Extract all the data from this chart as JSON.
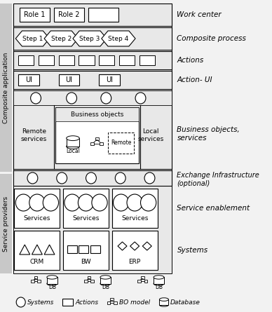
{
  "bg_color": "#f2f2f2",
  "white": "#ffffff",
  "black": "#000000",
  "lgray": "#e0e0e0",
  "mgray": "#c8c8c8",
  "composite_label": "Composite application",
  "service_label": "Service providers",
  "work_center_label": "Work center",
  "composite_process_label": "Composite process",
  "actions_label": "Actions",
  "action_ui_label": "Action- UI",
  "bo_label": "Business objects,\nservices",
  "ei_label": "Exchange Infrastructure\n(optional)",
  "se_label": "Service enablement",
  "systems_label": "Systems",
  "steps": [
    "Step 1",
    "Step 2",
    "Step 3",
    "Step 4"
  ],
  "sys_labels": [
    "CRM",
    "BW",
    "ERP"
  ],
  "legend_items": [
    "Systems",
    "Actions",
    "BO model",
    "Database"
  ]
}
